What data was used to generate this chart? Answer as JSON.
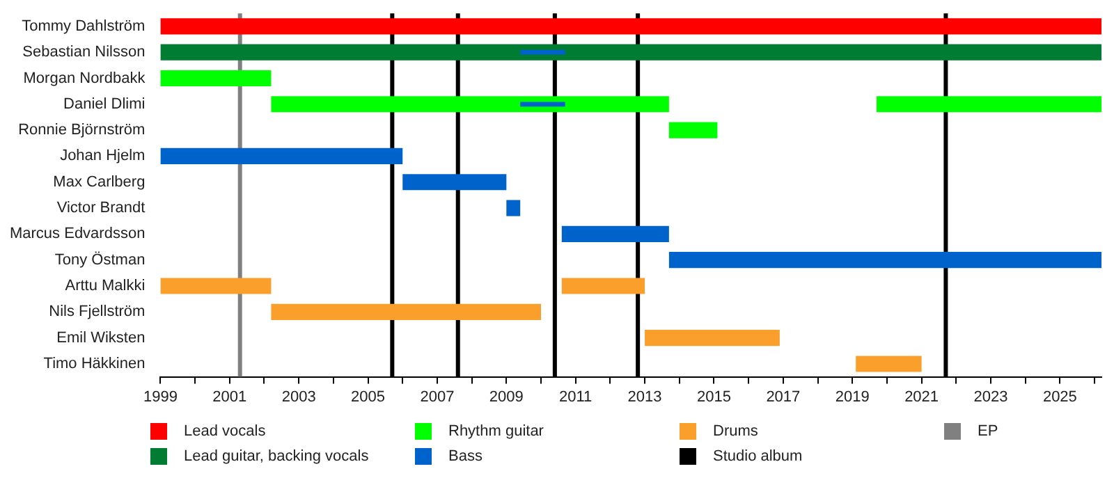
{
  "chart_data": {
    "type": "bar",
    "orientation": "horizontal",
    "categories": [
      "Tommy Dahlström",
      "Sebastian Nilsson",
      "Morgan Nordbakk",
      "Daniel Dlimi",
      "Ronnie Björnström",
      "Johan Hjelm",
      "Max Carlberg",
      "Victor Brandt",
      "Marcus Edvardsson",
      "Tony Östman",
      "Arttu Malkki",
      "Nils Fjellström",
      "Emil Wiksten",
      "Timo Häkkinen"
    ],
    "series": [
      {
        "name": "Lead vocals",
        "color": "#ff0000",
        "base": [
          1999,
          null,
          null,
          null,
          null,
          null,
          null,
          null,
          null,
          null,
          null,
          null,
          null,
          null
        ],
        "values": [
          27.2,
          null,
          null,
          null,
          null,
          null,
          null,
          null,
          null,
          null,
          null,
          null,
          null,
          null
        ]
      },
      {
        "name": "Lead guitar, backing vocals",
        "color": "#007d33",
        "base": [
          null,
          1999,
          null,
          null,
          null,
          null,
          null,
          null,
          null,
          null,
          null,
          null,
          null,
          null
        ],
        "values": [
          null,
          27.2,
          null,
          null,
          null,
          null,
          null,
          null,
          null,
          null,
          null,
          null,
          null,
          null
        ]
      },
      {
        "name": "Rhythm guitar",
        "color": "#00ff00",
        "base": [
          null,
          null,
          1999,
          2002.2,
          2013.7,
          null,
          null,
          null,
          null,
          null,
          null,
          null,
          null,
          null
        ],
        "values": [
          null,
          null,
          3.2,
          11.5,
          1.4,
          null,
          null,
          null,
          null,
          null,
          null,
          null,
          null,
          null
        ]
      },
      {
        "name": "Bass",
        "color": "#0063cc",
        "base": [
          null,
          null,
          null,
          null,
          null,
          1999,
          2006,
          2009,
          2010.6,
          2013.7,
          null,
          null,
          null,
          null
        ],
        "values": [
          null,
          null,
          null,
          null,
          null,
          7,
          3,
          0.4,
          3.1,
          12.5,
          null,
          null,
          null,
          null
        ]
      },
      {
        "name": "Drums",
        "color": "#fa9f2b",
        "base": [
          null,
          null,
          null,
          null,
          null,
          null,
          null,
          null,
          null,
          null,
          1999,
          2002.2,
          2013,
          2019.1
        ],
        "values": [
          null,
          null,
          null,
          null,
          null,
          null,
          null,
          null,
          null,
          null,
          3.2,
          7.8,
          3.9,
          1.9
        ]
      },
      {
        "color": "#00ff00",
        "base": [
          null,
          null,
          null,
          2019.7,
          null,
          null,
          null,
          null,
          null,
          null,
          null,
          null,
          null,
          null
        ],
        "values": [
          null,
          null,
          null,
          6.5,
          null,
          null,
          null,
          null,
          null,
          null,
          null,
          null,
          null,
          null
        ]
      },
      {
        "color": "#fa9f2b",
        "base": [
          null,
          null,
          null,
          null,
          null,
          null,
          null,
          null,
          null,
          null,
          2010.6,
          null,
          null,
          null
        ],
        "values": [
          null,
          null,
          null,
          null,
          null,
          null,
          null,
          null,
          null,
          null,
          2.4,
          null,
          null,
          null
        ]
      },
      {
        "color": "#0063cc",
        "base": [
          null,
          2009.4,
          null,
          2009.4,
          null,
          null,
          null,
          null,
          null,
          null,
          null,
          null,
          null,
          null
        ],
        "values": [
          null,
          1.3,
          null,
          1.3,
          null,
          null,
          null,
          null,
          null,
          null,
          null,
          null,
          null,
          null
        ]
      }
    ],
    "xlim": [
      1999,
      2026.2
    ],
    "xticks": [
      1999,
      {
        "value": 2000,
        "label": null
      },
      2001,
      {
        "value": 2002,
        "label": null
      },
      2003,
      {
        "value": 2004,
        "label": null
      },
      2005,
      {
        "value": 2006,
        "label": null
      },
      2007,
      {
        "value": 2008,
        "label": null
      },
      2009,
      {
        "value": 2010,
        "label": null
      },
      2011,
      {
        "value": 2012,
        "label": null
      },
      2013,
      {
        "value": 2014,
        "label": null
      },
      2015,
      {
        "value": 2016,
        "label": null
      },
      2017,
      {
        "value": 2018,
        "label": null
      },
      2019,
      {
        "value": 2020,
        "label": null
      },
      2021,
      {
        "value": 2022,
        "label": null
      },
      2023,
      {
        "value": 2024,
        "label": null
      },
      2025,
      {
        "value": 2026,
        "label": null
      }
    ],
    "ref_lines": [
      {
        "axis": "x",
        "value": 2005.7,
        "label": "Studio album",
        "color": "#000000"
      },
      {
        "axis": "x",
        "value": 2007.6,
        "color": "#000000"
      },
      {
        "axis": "x",
        "value": 2010.4,
        "color": "#000000"
      },
      {
        "axis": "x",
        "value": 2012.8,
        "color": "#000000"
      },
      {
        "axis": "x",
        "value": 2021.7,
        "color": "#000000"
      },
      {
        "axis": "x",
        "value": 2001.3,
        "label": "EP",
        "color": "#808080"
      }
    ],
    "grid": false,
    "legend": "bottom"
  }
}
